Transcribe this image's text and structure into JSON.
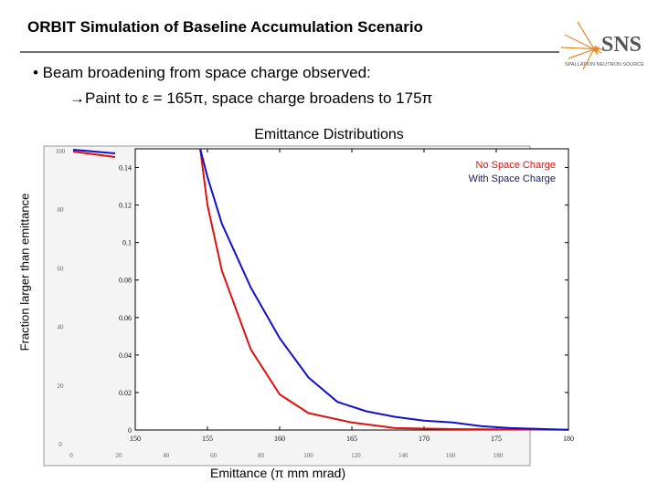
{
  "slide": {
    "title": "ORBIT Simulation of Baseline Accumulation Scenario",
    "bullet_main": "• Beam broadening from space charge observed:",
    "bullet_sub": "→Paint to ε = 165π, space charge broadens to 175π",
    "logo_text": "SNS",
    "logo_subtext": "SPALLATION NEUTRON SOURCE"
  },
  "colors": {
    "no_space_charge": "#dd1111",
    "with_space_charge": "#1111cc",
    "plot_bg": "#ffffff",
    "rule": "#6d6d6d"
  },
  "chart_data": {
    "type": "line",
    "title": "Emittance Distributions",
    "xlabel": "Emittance (π mm mrad)",
    "ylabel": "Fraction larger than emittance",
    "xlim": [
      150,
      180
    ],
    "ylim": [
      0,
      0.15
    ],
    "x_ticks": [
      "150",
      "155",
      "160",
      "165",
      "170",
      "175",
      "180"
    ],
    "y_ticks": [
      "0",
      "0.02",
      "0.04",
      "0.06",
      "0.08",
      "0.1",
      "0.12",
      "0.14"
    ],
    "underlay_x_ticks": [
      "0",
      "20",
      "40",
      "60",
      "80",
      "100",
      "120",
      "140",
      "160",
      "180"
    ],
    "underlay_y_ticks": [
      "0",
      "20",
      "40",
      "60",
      "80",
      "100"
    ],
    "legend": {
      "position": "top-right",
      "entries": [
        "No Space Charge",
        "With Space Charge"
      ]
    },
    "series": [
      {
        "name": "No Space Charge",
        "x": [
          154.5,
          155.0,
          156.0,
          158.0,
          160.0,
          162.0,
          165.0,
          168.0,
          172.0,
          176.0,
          180.0
        ],
        "y": [
          0.15,
          0.12,
          0.085,
          0.043,
          0.019,
          0.009,
          0.004,
          0.001,
          0.0005,
          0.0003,
          0.0001
        ]
      },
      {
        "name": "With Space Charge",
        "x": [
          154.5,
          155.0,
          156.0,
          158.0,
          160.0,
          162.0,
          164.0,
          166.0,
          168.0,
          170.0,
          172.0,
          174.0,
          176.0,
          180.0
        ],
        "y": [
          0.15,
          0.135,
          0.11,
          0.076,
          0.049,
          0.028,
          0.015,
          0.01,
          0.007,
          0.005,
          0.004,
          0.002,
          0.001,
          0.0001
        ]
      }
    ]
  }
}
